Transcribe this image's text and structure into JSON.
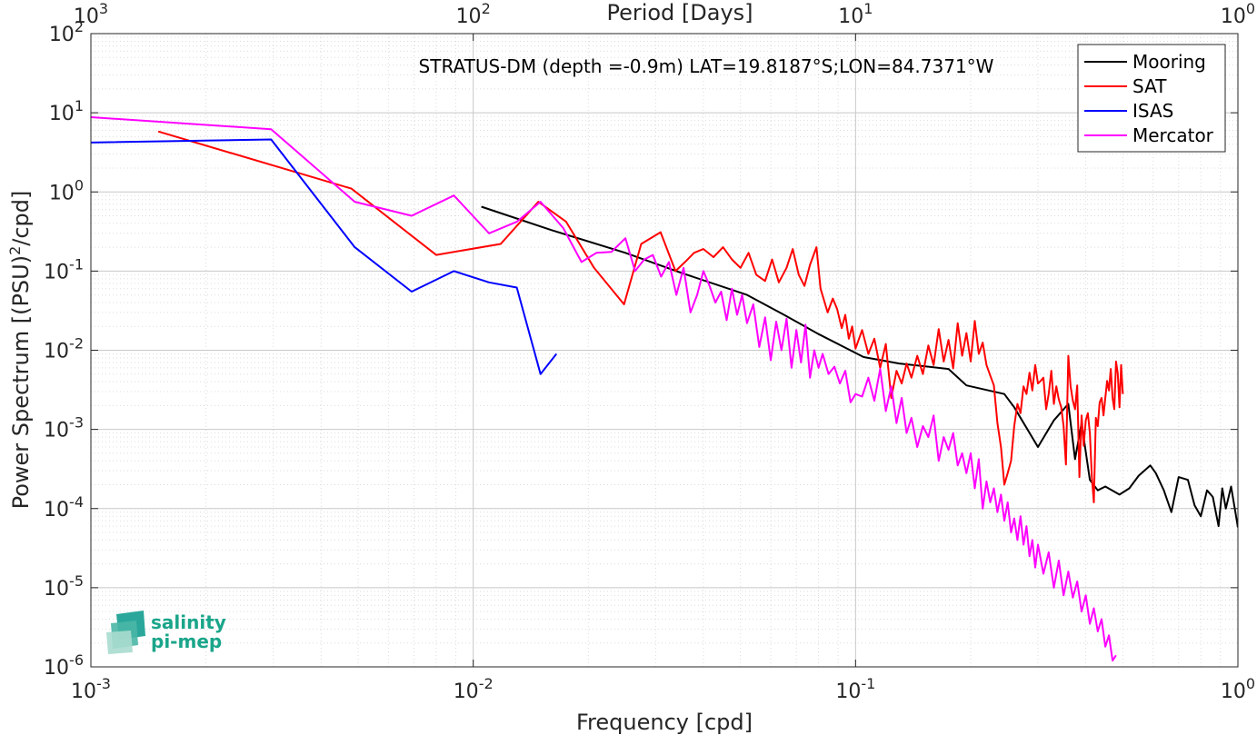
{
  "chart_data": {
    "type": "line",
    "title": "STRATUS-DM (depth =-0.9m) LAT=19.8187°S;LON=84.7371°W",
    "xlabel": "Frequency [cpd]",
    "ylabel_main": "Power Spectrum [(PSU)",
    "ylabel_sup": "2",
    "ylabel_tail": "/cpd]",
    "top_xlabel": "Period [Days]",
    "xscale": "log",
    "yscale": "log",
    "xlim": [
      0.001,
      1
    ],
    "ylim": [
      1e-06,
      100
    ],
    "grid": true,
    "legend_position": "top-right",
    "x_ticks": [
      {
        "value": 0.001,
        "base": "10",
        "exp": "-3"
      },
      {
        "value": 0.01,
        "base": "10",
        "exp": "-2"
      },
      {
        "value": 0.1,
        "base": "10",
        "exp": "-1"
      },
      {
        "value": 1,
        "base": "10",
        "exp": "0"
      }
    ],
    "top_ticks": [
      {
        "value": 0.001,
        "base": "10",
        "exp": "3"
      },
      {
        "value": 0.01,
        "base": "10",
        "exp": "2"
      },
      {
        "value": 0.1,
        "base": "10",
        "exp": "1"
      },
      {
        "value": 1,
        "base": "10",
        "exp": "0"
      }
    ],
    "y_ticks": [
      {
        "value": 100,
        "base": "10",
        "exp": "2"
      },
      {
        "value": 10,
        "base": "10",
        "exp": "1"
      },
      {
        "value": 1,
        "base": "10",
        "exp": "0"
      },
      {
        "value": 0.1,
        "base": "10",
        "exp": "-1"
      },
      {
        "value": 0.01,
        "base": "10",
        "exp": "-2"
      },
      {
        "value": 0.001,
        "base": "10",
        "exp": "-3"
      },
      {
        "value": 0.0001,
        "base": "10",
        "exp": "-4"
      },
      {
        "value": 1e-05,
        "base": "10",
        "exp": "-5"
      },
      {
        "value": 1e-06,
        "base": "10",
        "exp": "-6"
      }
    ],
    "series": [
      {
        "name": "Mooring",
        "color": "#000000",
        "x": [
          0.0105,
          0.016,
          0.025,
          0.035,
          0.052,
          0.065,
          0.08,
          0.105,
          0.13,
          0.175,
          0.195,
          0.245,
          0.26,
          0.3,
          0.33,
          0.36,
          0.375,
          0.39,
          0.41,
          0.43,
          0.45,
          0.49,
          0.52,
          0.55,
          0.59,
          0.61,
          0.64,
          0.67,
          0.7,
          0.74,
          0.77,
          0.8,
          0.83,
          0.86,
          0.89,
          0.91,
          0.93,
          0.96,
          1.0
        ],
        "y": [
          0.65,
          0.33,
          0.17,
          0.095,
          0.05,
          0.028,
          0.016,
          0.0082,
          0.0068,
          0.0058,
          0.0036,
          0.0028,
          0.0019,
          0.0006,
          0.0013,
          0.0021,
          0.00042,
          0.0012,
          0.00023,
          0.00017,
          0.00019,
          0.00015,
          0.00018,
          0.00026,
          0.00035,
          0.00028,
          0.00017,
          9e-05,
          0.00025,
          0.00023,
          0.00011,
          8e-05,
          0.00017,
          0.00014,
          6e-05,
          0.00018,
          0.0001,
          0.00019,
          5.8e-05
        ]
      },
      {
        "name": "SAT",
        "color": "#ff0000",
        "x": [
          0.0015,
          0.0048,
          0.008,
          0.0118,
          0.0148,
          0.0175,
          0.0207,
          0.0248,
          0.0275,
          0.0309,
          0.0338,
          0.0358,
          0.0378,
          0.04,
          0.0425,
          0.045,
          0.0475,
          0.05,
          0.0525,
          0.055,
          0.058,
          0.0605,
          0.063,
          0.066,
          0.0685,
          0.071,
          0.0735,
          0.076,
          0.079,
          0.081,
          0.0845,
          0.0872,
          0.0895,
          0.092,
          0.094,
          0.096,
          0.098,
          0.1,
          0.104,
          0.108,
          0.112,
          0.116,
          0.12,
          0.124,
          0.128,
          0.132,
          0.136,
          0.14,
          0.145,
          0.15,
          0.155,
          0.16,
          0.165,
          0.17,
          0.175,
          0.18,
          0.185,
          0.19,
          0.195,
          0.2,
          0.205,
          0.21,
          0.215,
          0.22,
          0.225,
          0.23,
          0.235,
          0.24,
          0.245,
          0.25,
          0.255,
          0.26,
          0.265,
          0.27,
          0.275,
          0.28,
          0.285,
          0.29,
          0.295,
          0.3,
          0.305,
          0.31,
          0.315,
          0.32,
          0.325,
          0.33,
          0.335,
          0.34,
          0.345,
          0.35,
          0.355,
          0.36,
          0.365,
          0.37,
          0.375,
          0.38,
          0.385,
          0.39,
          0.395,
          0.4,
          0.405,
          0.41,
          0.415,
          0.42,
          0.425,
          0.43,
          0.435,
          0.44,
          0.445,
          0.45,
          0.455,
          0.46,
          0.465,
          0.47,
          0.475,
          0.48,
          0.485,
          0.49,
          0.495,
          0.5
        ],
        "y": [
          5.8,
          1.1,
          0.16,
          0.22,
          0.75,
          0.42,
          0.11,
          0.038,
          0.22,
          0.31,
          0.1,
          0.13,
          0.17,
          0.19,
          0.15,
          0.2,
          0.14,
          0.11,
          0.17,
          0.09,
          0.075,
          0.14,
          0.072,
          0.11,
          0.19,
          0.09,
          0.065,
          0.12,
          0.2,
          0.06,
          0.03,
          0.045,
          0.033,
          0.019,
          0.028,
          0.014,
          0.02,
          0.0105,
          0.018,
          0.009,
          0.014,
          0.006,
          0.012,
          0.0025,
          0.0055,
          0.0038,
          0.0068,
          0.0045,
          0.0085,
          0.005,
          0.0115,
          0.0065,
          0.0185,
          0.0072,
          0.0135,
          0.0059,
          0.022,
          0.0085,
          0.0165,
          0.0072,
          0.0235,
          0.009,
          0.0125,
          0.0065,
          0.0048,
          0.0036,
          0.0012,
          0.0006,
          0.0002,
          0.00028,
          0.0004,
          0.0011,
          0.0021,
          0.0016,
          0.0035,
          0.0028,
          0.0052,
          0.0031,
          0.0065,
          0.0038,
          0.0041,
          0.0045,
          0.0018,
          0.0028,
          0.0055,
          0.0021,
          0.0035,
          0.0024,
          0.0019,
          0.0011,
          0.00036,
          0.0085,
          0.0035,
          0.0023,
          0.0018,
          0.0036,
          0.00025,
          0.0015,
          0.00062,
          0.0013,
          0.0016,
          0.0009,
          0.00025,
          0.00012,
          0.0014,
          0.0011,
          0.0022,
          0.0025,
          0.0015,
          0.0025,
          0.0041,
          0.0031,
          0.0058,
          0.0025,
          0.0018,
          0.0072,
          0.0051,
          0.0019,
          0.0065,
          0.0028
        ]
      },
      {
        "name": "ISAS",
        "color": "#0000ff",
        "x": [
          0.001,
          0.00296,
          0.0049,
          0.0069,
          0.0089,
          0.011,
          0.013,
          0.015,
          0.0165
        ],
        "y": [
          4.2,
          4.6,
          0.2,
          0.055,
          0.1,
          0.072,
          0.062,
          0.005,
          0.009
        ]
      },
      {
        "name": "Mercator",
        "color": "#ff00ff",
        "x": [
          0.001,
          0.00296,
          0.0049,
          0.0069,
          0.0089,
          0.011,
          0.013,
          0.015,
          0.0172,
          0.0192,
          0.021,
          0.023,
          0.025,
          0.0265,
          0.028,
          0.0295,
          0.031,
          0.0325,
          0.034,
          0.0355,
          0.037,
          0.0385,
          0.04,
          0.0415,
          0.043,
          0.0445,
          0.046,
          0.0475,
          0.049,
          0.0505,
          0.052,
          0.054,
          0.056,
          0.058,
          0.06,
          0.062,
          0.064,
          0.066,
          0.068,
          0.07,
          0.072,
          0.074,
          0.076,
          0.078,
          0.08,
          0.082,
          0.085,
          0.088,
          0.091,
          0.094,
          0.097,
          0.1,
          0.104,
          0.108,
          0.112,
          0.116,
          0.12,
          0.124,
          0.128,
          0.132,
          0.136,
          0.14,
          0.145,
          0.15,
          0.155,
          0.16,
          0.165,
          0.17,
          0.175,
          0.18,
          0.185,
          0.19,
          0.195,
          0.2,
          0.205,
          0.21,
          0.215,
          0.22,
          0.225,
          0.23,
          0.235,
          0.24,
          0.245,
          0.25,
          0.255,
          0.26,
          0.265,
          0.27,
          0.275,
          0.28,
          0.285,
          0.29,
          0.295,
          0.3,
          0.31,
          0.32,
          0.33,
          0.34,
          0.35,
          0.36,
          0.37,
          0.38,
          0.39,
          0.4,
          0.41,
          0.42,
          0.43,
          0.44,
          0.45,
          0.46,
          0.47,
          0.48
        ],
        "y": [
          8.8,
          6.2,
          0.75,
          0.5,
          0.9,
          0.3,
          0.42,
          0.75,
          0.35,
          0.13,
          0.17,
          0.175,
          0.26,
          0.1,
          0.14,
          0.16,
          0.085,
          0.13,
          0.05,
          0.11,
          0.03,
          0.05,
          0.1,
          0.065,
          0.04,
          0.055,
          0.024,
          0.06,
          0.028,
          0.05,
          0.022,
          0.038,
          0.011,
          0.026,
          0.0075,
          0.023,
          0.01,
          0.025,
          0.006,
          0.018,
          0.007,
          0.021,
          0.0045,
          0.01,
          0.006,
          0.009,
          0.005,
          0.0062,
          0.0038,
          0.0055,
          0.0022,
          0.0028,
          0.0026,
          0.0045,
          0.0023,
          0.0058,
          0.0017,
          0.0035,
          0.0012,
          0.0025,
          0.0009,
          0.0014,
          0.0006,
          0.0011,
          0.0008,
          0.0015,
          0.0004,
          0.0008,
          0.00055,
          0.0009,
          0.00035,
          0.0005,
          0.00028,
          0.0005,
          0.00018,
          0.00042,
          0.0001,
          0.00022,
          0.00012,
          0.00018,
          9e-05,
          0.00015,
          7e-05,
          0.00012,
          5e-05,
          7.5e-05,
          4e-05,
          8e-05,
          3.5e-05,
          6e-05,
          2.5e-05,
          4e-05,
          1.8e-05,
          3.5e-05,
          1.5e-05,
          2.8e-05,
          1e-05,
          2.2e-05,
          8e-06,
          1.6e-05,
          7.5e-06,
          1.2e-05,
          5e-06,
          8e-06,
          3.5e-06,
          5.5e-06,
          2.8e-06,
          4e-06,
          1.8e-06,
          2.5e-06,
          1.2e-06,
          1.4e-06
        ]
      }
    ]
  },
  "logo": {
    "line1": "salinity",
    "line2": "pi-mep"
  }
}
